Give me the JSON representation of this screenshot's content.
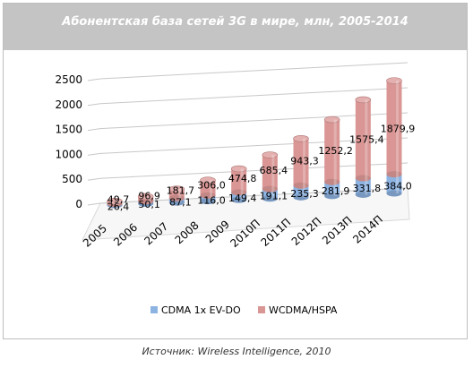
{
  "chart_data": {
    "type": "bar",
    "stacked": true,
    "three_d": true,
    "title": "Абонентская база сетей 3G в мире, млн, 2005-2014",
    "categories": [
      "2005",
      "2006",
      "2007",
      "2008",
      "2009",
      "2010П",
      "2011П",
      "2012П",
      "2013П",
      "2014П"
    ],
    "series": [
      {
        "name": "CDMA 1x EV-DO",
        "color": "#8db3e2",
        "values": [
          26.4,
          50.1,
          87.1,
          116.0,
          149.4,
          191.1,
          235.3,
          281.9,
          331.8,
          384.0
        ],
        "labels": [
          "26,4",
          "50,1",
          "87,1",
          "116,0",
          "149,4",
          "191,1",
          "235,3",
          "281,9",
          "331,8",
          "384,0"
        ]
      },
      {
        "name": "WCDMA/HSPA",
        "color": "#d99694",
        "values": [
          49.7,
          96.9,
          181.7,
          306.0,
          474.8,
          685.4,
          943.3,
          1252.2,
          1575.4,
          1879.9
        ],
        "labels": [
          "49,7",
          "96,9",
          "181,7",
          "306,0",
          "474,8",
          "685,4",
          "943,3",
          "1252,2",
          "1575,4",
          "1879,9"
        ]
      }
    ],
    "yticks": [
      "0",
      "500",
      "1000",
      "1500",
      "2000",
      "2500"
    ],
    "ylim": [
      0,
      2500
    ],
    "grid": true,
    "legend_position": "bottom"
  },
  "source_note": "Источник: Wireless Intelligence, 2010"
}
